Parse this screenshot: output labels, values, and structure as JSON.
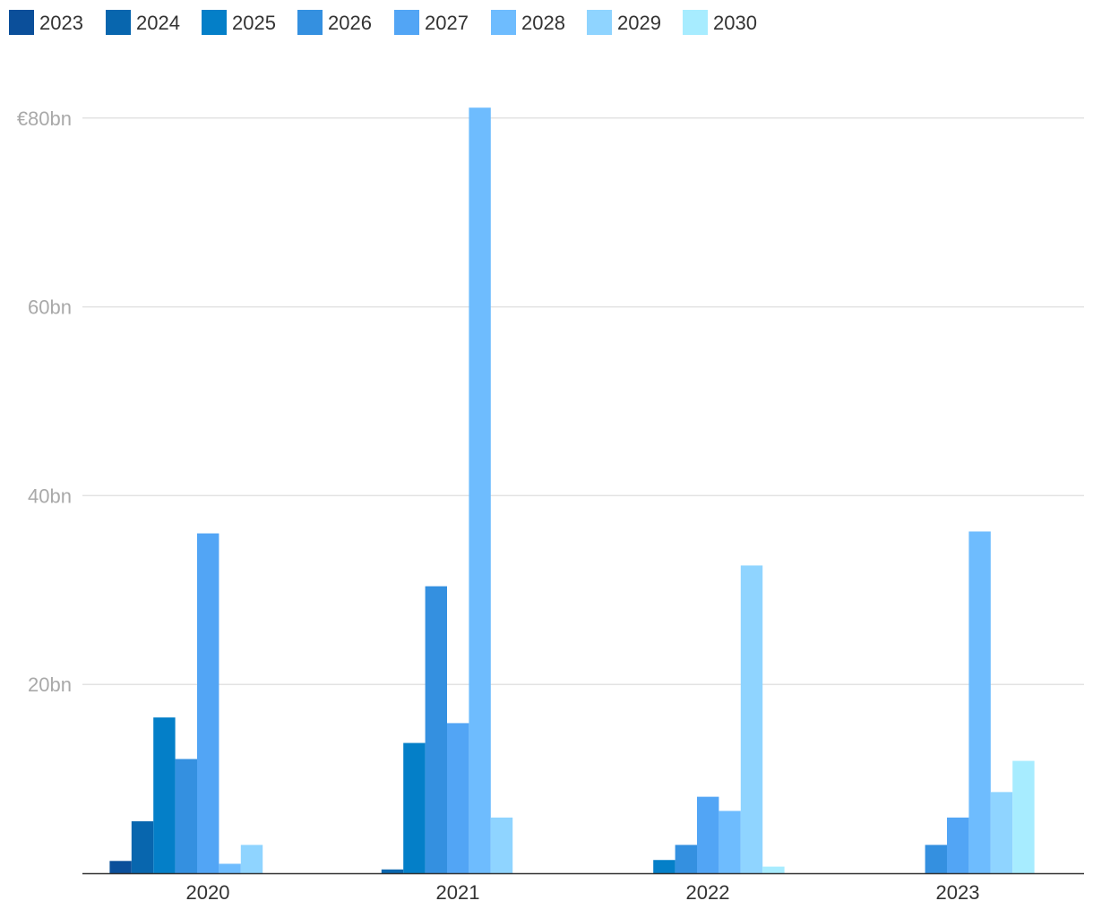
{
  "chart_data": {
    "type": "bar",
    "title": "",
    "xlabel": "",
    "ylabel": "",
    "categories": [
      "2020",
      "2021",
      "2022",
      "2023"
    ],
    "ylim": [
      0,
      80
    ],
    "yticks": [
      {
        "value": 20,
        "label": "20bn"
      },
      {
        "value": 40,
        "label": "40bn"
      },
      {
        "value": 60,
        "label": "60bn"
      },
      {
        "value": 80,
        "label": "€80bn"
      }
    ],
    "grid": true,
    "legend_position": "top-left",
    "series": [
      {
        "name": "2023",
        "color": "#0b4f9a",
        "values": [
          1.3,
          0,
          0,
          0
        ]
      },
      {
        "name": "2024",
        "color": "#0866ae",
        "values": [
          5.5,
          0.4,
          0,
          0
        ]
      },
      {
        "name": "2025",
        "color": "#047fc8",
        "values": [
          16.5,
          13.8,
          1.4,
          0
        ]
      },
      {
        "name": "2026",
        "color": "#3490e0",
        "values": [
          12.1,
          30.4,
          3.0,
          3.0
        ]
      },
      {
        "name": "2027",
        "color": "#52a5f5",
        "values": [
          36.0,
          15.9,
          8.1,
          5.9
        ]
      },
      {
        "name": "2028",
        "color": "#6ebcfe",
        "values": [
          1.0,
          81.1,
          6.6,
          36.2
        ]
      },
      {
        "name": "2029",
        "color": "#8fd4ff",
        "values": [
          3.0,
          5.9,
          32.6,
          8.6
        ]
      },
      {
        "name": "2030",
        "color": "#a7ecff",
        "values": [
          0,
          0,
          0.7,
          11.9
        ]
      }
    ]
  }
}
